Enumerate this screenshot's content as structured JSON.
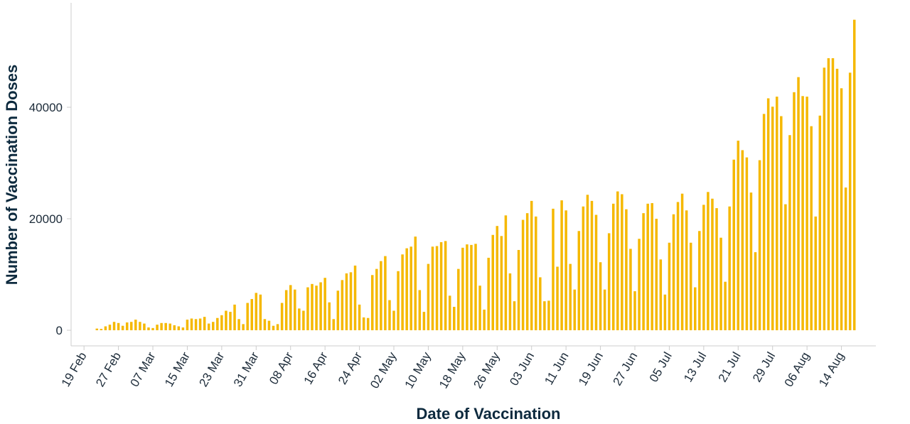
{
  "chart_data": {
    "type": "bar",
    "xlabel": "Date of Vaccination",
    "ylabel": "Number of Vaccination Doses",
    "ylim": [
      0,
      58000
    ],
    "y_ticks": [
      0,
      20000,
      40000
    ],
    "grid": false,
    "bar_color": "#f5b800",
    "axis_color": "#cccccc",
    "text_color": "#0d2a3e",
    "x_tick_labels": [
      "19 Feb",
      "27 Feb",
      "07 Mar",
      "15 Mar",
      "23 Mar",
      "31 Mar",
      "08 Apr",
      "16 Apr",
      "24 Apr",
      "02 May",
      "10 May",
      "18 May",
      "26 May",
      "03 Jun",
      "11 Jun",
      "19 Jun",
      "27 Jun",
      "05 Jul",
      "13 Jul",
      "21 Jul",
      "29 Jul",
      "06 Aug",
      "14 Aug"
    ],
    "x_start_date": "2021-02-22",
    "x_tick_start_date": "2021-02-19",
    "x_tick_interval_days": 8,
    "x_domain": [
      "2021-02-16",
      "2021-08-22"
    ],
    "values": [
      300,
      250,
      700,
      1000,
      1500,
      1300,
      800,
      1400,
      1500,
      1900,
      1500,
      1200,
      500,
      400,
      1000,
      1300,
      1300,
      1200,
      900,
      700,
      500,
      1900,
      2100,
      2000,
      2100,
      2400,
      1200,
      1500,
      2200,
      2700,
      3500,
      3300,
      4600,
      2000,
      1100,
      4900,
      5600,
      6700,
      6400,
      2000,
      1700,
      800,
      1100,
      4900,
      7200,
      8100,
      7300,
      3900,
      3500,
      7700,
      8300,
      8000,
      8600,
      9400,
      5000,
      2000,
      7100,
      9000,
      10200,
      10400,
      11600,
      4600,
      2300,
      2200,
      9900,
      11000,
      12400,
      13300,
      5400,
      3500,
      10600,
      13600,
      14700,
      15000,
      16800,
      7200,
      3300,
      11900,
      15000,
      15100,
      15800,
      16000,
      6200,
      4200,
      11000,
      14800,
      15400,
      15300,
      15500,
      8000,
      3700,
      13000,
      17100,
      18700,
      16900,
      20600,
      10200,
      5200,
      14400,
      19800,
      21000,
      23200,
      20400,
      9500,
      5200,
      5300,
      21800,
      11400,
      23300,
      21500,
      11900,
      7300,
      17800,
      22200,
      24300,
      23200,
      20700,
      12200,
      7300,
      17400,
      22700,
      24900,
      24400,
      21700,
      14600,
      7000,
      16400,
      21000,
      22700,
      22800,
      20000,
      12700,
      6400,
      15700,
      20800,
      23000,
      24500,
      21500,
      15700,
      7700,
      17800,
      22500,
      24800,
      23600,
      21900,
      16600,
      8700,
      22200,
      30600,
      34000,
      32300,
      31000,
      24700,
      14000,
      30500,
      38800,
      41600,
      40100,
      41900,
      38400,
      22600,
      35000,
      42700,
      45400,
      42000,
      41900,
      36600,
      20400,
      38500,
      47100,
      48800,
      48800,
      46900,
      43400,
      25600,
      46200,
      55700
    ]
  }
}
